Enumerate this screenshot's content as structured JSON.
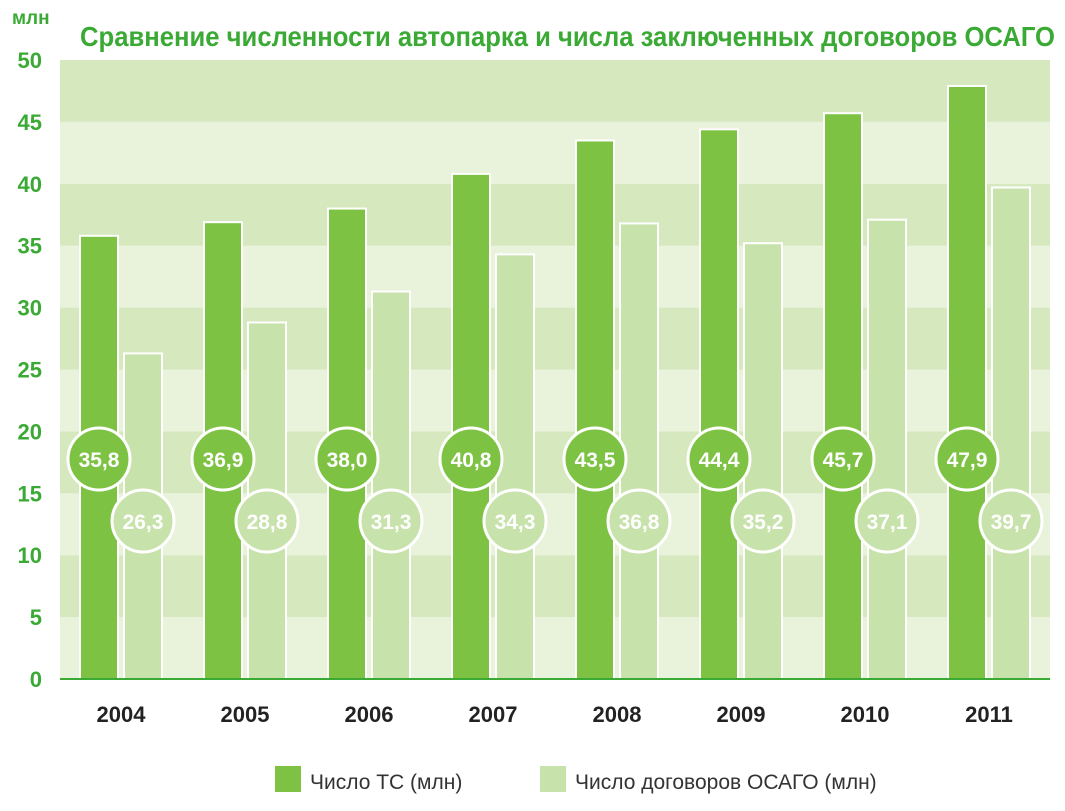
{
  "chart_data": {
    "type": "bar",
    "title": "Сравнение численности автопарка и числа заключенных договоров ОСАГО",
    "ylabel": "млн",
    "xlabel": "",
    "ylim": [
      0,
      50
    ],
    "yticks": [
      "0",
      "5",
      "10",
      "15",
      "20",
      "25",
      "30",
      "35",
      "40",
      "45",
      "50"
    ],
    "categories": [
      "2004",
      "2005",
      "2006",
      "2007",
      "2008",
      "2009",
      "2010",
      "2011"
    ],
    "grid": true,
    "legend_position": "bottom",
    "series": [
      {
        "name": "Число ТС (млн)",
        "color": "#7dc242",
        "values": [
          35.8,
          36.9,
          38.0,
          40.8,
          43.5,
          44.4,
          45.7,
          47.9
        ],
        "labels": [
          "35,8",
          "36,9",
          "38,0",
          "40,8",
          "43,5",
          "44,4",
          "45,7",
          "47,9"
        ]
      },
      {
        "name": "Число договоров ОСАГО (млн)",
        "color": "#c8e2ab",
        "values": [
          26.3,
          28.8,
          31.3,
          34.3,
          36.8,
          35.2,
          37.1,
          39.7
        ],
        "labels": [
          "26,3",
          "28,8",
          "31,3",
          "34,3",
          "36,8",
          "35,2",
          "37,1",
          "39,7"
        ]
      }
    ]
  }
}
